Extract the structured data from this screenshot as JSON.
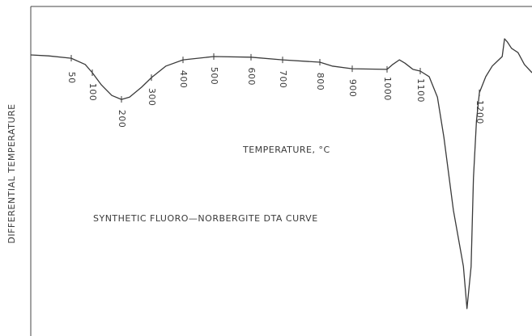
{
  "chart_data": {
    "type": "line",
    "title": "SYNTHETIC FLUORO—NORBERGITE DTA CURVE",
    "xlabel": "TEMPERATURE, °C",
    "ylabel": "DIFFERENTIAL TEMPERATURE",
    "color": "#3a3a3a",
    "xlim": [
      0,
      1290
    ],
    "ylim": [
      0,
      100
    ],
    "xticks": [
      50,
      100,
      200,
      300,
      400,
      500,
      600,
      700,
      800,
      900,
      1000,
      1100,
      1200
    ],
    "x": [
      0,
      22,
      50,
      83,
      100,
      131,
      167,
      200,
      227,
      267,
      300,
      346,
      400,
      500,
      600,
      700,
      800,
      838,
      900,
      1000,
      1017,
      1037,
      1054,
      1078,
      1100,
      1115,
      1129,
      1140,
      1156,
      1173,
      1179,
      1186,
      1190,
      1195,
      1200,
      1211,
      1222,
      1232,
      1239,
      1243,
      1248,
      1255,
      1266,
      1277,
      1290
    ],
    "values": [
      85.3,
      85.0,
      84.3,
      82.4,
      79.9,
      76.2,
      73.0,
      71.8,
      72.5,
      75.5,
      78.4,
      81.9,
      83.8,
      84.8,
      84.6,
      83.8,
      83.1,
      81.9,
      81.1,
      80.9,
      82.4,
      83.8,
      82.8,
      80.9,
      80.4,
      78.7,
      72.5,
      60.3,
      38.2,
      21.1,
      8.3,
      21.1,
      48.0,
      65.2,
      73.8,
      78.7,
      81.9,
      83.6,
      84.8,
      90.2,
      89.2,
      87.3,
      86.0,
      82.4,
      79.9
    ]
  }
}
